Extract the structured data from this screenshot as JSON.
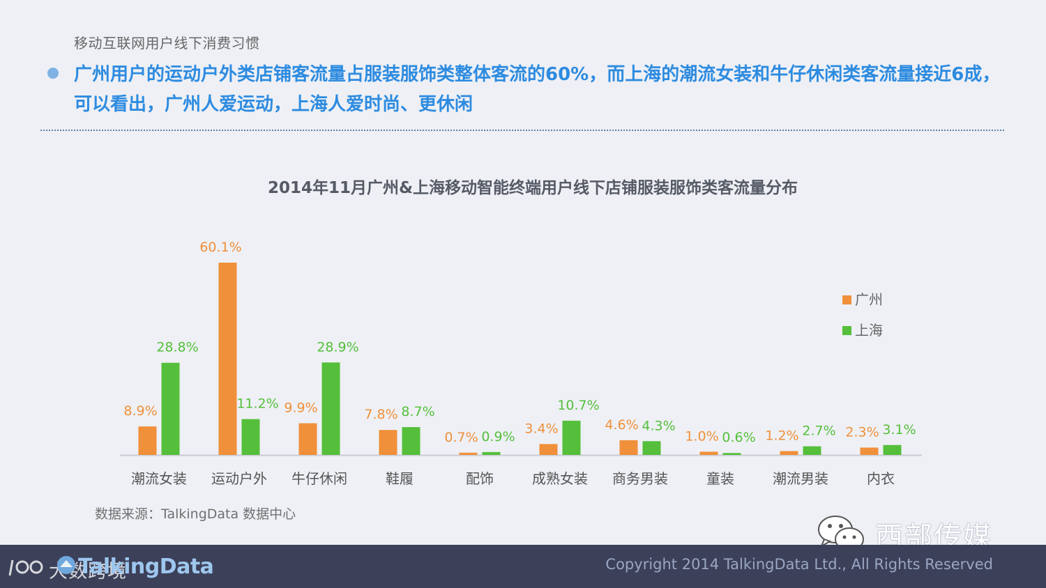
{
  "header": {
    "section_label": "移动互联网用户线下消费习惯",
    "headline": "广州用户的运动户外类店铺客流量占服装服饰类整体客流的60%，而上海的潮流女装和牛仔休闲类客流量接近6成，可以看出，广州人爱运动，上海人爱时尚、更休闲"
  },
  "chart_data": {
    "type": "bar",
    "title": "2014年11月广州&上海移动智能终端用户线下店铺服装服饰类客流量分布",
    "categories": [
      "潮流女装",
      "运动户外",
      "牛仔休闲",
      "鞋履",
      "配饰",
      "成熟女装",
      "商务男装",
      "童装",
      "潮流男装",
      "内衣"
    ],
    "series": [
      {
        "name": "广州",
        "color": "#f0903a",
        "values": [
          8.9,
          60.1,
          9.9,
          7.8,
          0.7,
          3.4,
          4.6,
          1.0,
          1.2,
          2.3
        ],
        "labels": [
          "8.9%",
          "60.1%",
          "9.9%",
          "7.8%",
          "0.7%",
          "3.4%",
          "4.6%",
          "1.0%",
          "1.2%",
          "2.3%"
        ]
      },
      {
        "name": "上海",
        "color": "#55bf3b",
        "values": [
          28.8,
          11.2,
          28.9,
          8.7,
          0.9,
          10.7,
          4.3,
          0.6,
          2.7,
          3.1
        ],
        "labels": [
          "28.8%",
          "11.2%",
          "28.9%",
          "8.7%",
          "0.9%",
          "10.7%",
          "4.3%",
          "0.6%",
          "2.7%",
          "3.1%"
        ]
      }
    ],
    "unit": "%",
    "ylim": [
      0,
      60.1
    ],
    "grid": false,
    "legend_position": "right"
  },
  "source": "数据来源：TalkingData 数据中心",
  "watermark": {
    "brand": "西部传媒",
    "icon": "wechat-icon",
    "footer_text": "大数跨境"
  },
  "footer": {
    "logo_text": "TalkingData",
    "copyright": "Copyright 2014 TalkingData Ltd., All Rights Reserved"
  }
}
